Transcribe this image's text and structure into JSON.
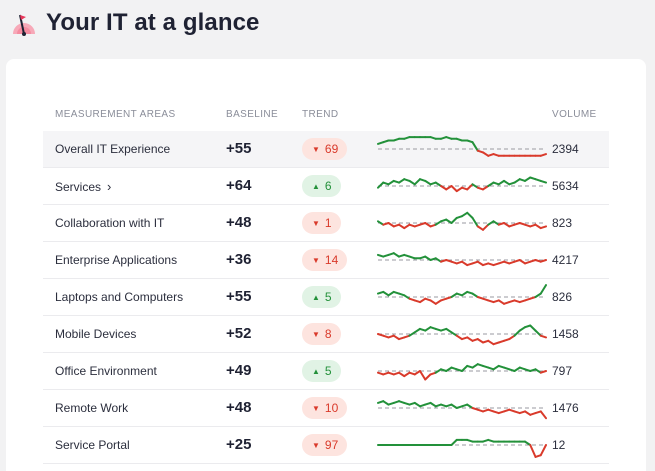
{
  "page": {
    "title": "Your IT at a glance"
  },
  "table": {
    "headers": {
      "area": "MEASUREMENT AREAS",
      "baseline": "BASELINE",
      "trend": "TREND",
      "volume": "VOLUME"
    },
    "rows": [
      {
        "label": "Overall IT Experience",
        "baseline": "+55",
        "trend": "69",
        "direction": "down",
        "volume": "2394",
        "spark": [
          3,
          4,
          5,
          5,
          6,
          6,
          7,
          7,
          7,
          7,
          7,
          6,
          6,
          7,
          6,
          6,
          5,
          5,
          4,
          -1,
          -2,
          -4,
          -3,
          -4,
          -4,
          -4,
          -4,
          -4,
          -4,
          -4,
          -4,
          -4,
          -3
        ]
      },
      {
        "label": "Services",
        "has_chevron": true,
        "baseline": "+64",
        "trend": "6",
        "direction": "up",
        "volume": "5634",
        "spark": [
          -1,
          2,
          1,
          3,
          2,
          4,
          3,
          1,
          4,
          3,
          1,
          2,
          0,
          -2,
          0,
          -3,
          -1,
          -2,
          1,
          -1,
          -2,
          0,
          2,
          1,
          3,
          1,
          2,
          4,
          3,
          5,
          4,
          3,
          2
        ]
      },
      {
        "label": "Collaboration with IT",
        "baseline": "+48",
        "trend": "1",
        "direction": "down",
        "volume": "823",
        "spark": [
          1,
          -1,
          0,
          -2,
          -1,
          -3,
          -1,
          -2,
          -1,
          0,
          -2,
          -1,
          1,
          2,
          0,
          3,
          4,
          6,
          3,
          -2,
          -4,
          -1,
          1,
          -1,
          0,
          -2,
          -1,
          0,
          -1,
          -2,
          -1,
          -3,
          -2
        ]
      },
      {
        "label": "Enterprise Applications",
        "baseline": "+36",
        "trend": "14",
        "direction": "down",
        "volume": "4217",
        "spark": [
          3,
          2,
          3,
          4,
          2,
          3,
          2,
          1,
          1,
          2,
          0,
          1,
          -1,
          0,
          -1,
          -2,
          -1,
          -3,
          -2,
          -1,
          -3,
          -2,
          -3,
          -2,
          -1,
          -2,
          -1,
          0,
          -2,
          -1,
          0,
          -1,
          0
        ]
      },
      {
        "label": "Laptops and Computers",
        "baseline": "+55",
        "trend": "5",
        "direction": "up",
        "volume": "826",
        "spark": [
          2,
          3,
          1,
          3,
          2,
          1,
          -1,
          -2,
          -3,
          -1,
          -2,
          -4,
          -2,
          -1,
          0,
          2,
          1,
          3,
          2,
          0,
          -1,
          -2,
          -3,
          -2,
          -4,
          -3,
          -2,
          -3,
          -2,
          -1,
          0,
          2,
          7
        ]
      },
      {
        "label": "Mobile Devices",
        "baseline": "+52",
        "trend": "8",
        "direction": "down",
        "volume": "1458",
        "spark": [
          0,
          -1,
          -2,
          -1,
          -3,
          -2,
          -1,
          1,
          3,
          2,
          4,
          3,
          2,
          3,
          1,
          -1,
          -3,
          -2,
          -4,
          -3,
          -5,
          -4,
          -6,
          -5,
          -4,
          -3,
          -1,
          2,
          4,
          5,
          2,
          -1,
          -2
        ]
      },
      {
        "label": "Office Environment",
        "baseline": "+49",
        "trend": "5",
        "direction": "up",
        "volume": "797",
        "spark": [
          -1,
          -2,
          -1,
          -2,
          -1,
          -3,
          -1,
          -2,
          0,
          -5,
          -2,
          -1,
          1,
          0,
          2,
          1,
          0,
          3,
          2,
          4,
          3,
          2,
          1,
          3,
          2,
          1,
          0,
          2,
          1,
          0,
          1,
          -1,
          0
        ]
      },
      {
        "label": "Remote Work",
        "baseline": "+48",
        "trend": "10",
        "direction": "down",
        "volume": "1476",
        "spark": [
          3,
          4,
          2,
          3,
          4,
          3,
          2,
          3,
          1,
          2,
          3,
          1,
          2,
          1,
          2,
          0,
          1,
          2,
          0,
          -1,
          -2,
          -1,
          -2,
          -3,
          -2,
          -1,
          -2,
          -3,
          -2,
          -4,
          -3,
          -2,
          -6
        ]
      },
      {
        "label": "Service Portal",
        "baseline": "+25",
        "trend": "97",
        "direction": "down",
        "volume": "12",
        "spark": [
          0,
          0,
          0,
          0,
          0,
          0,
          0,
          0,
          0,
          0,
          0,
          0,
          0,
          0,
          0,
          3,
          3,
          3,
          2,
          2,
          2,
          3,
          2,
          2,
          2,
          2,
          2,
          2,
          2,
          0,
          -7,
          -6,
          0
        ]
      }
    ]
  },
  "colors": {
    "up": "#23913a",
    "down": "#d93a2b",
    "baseline_dash": "#9a9aa2"
  },
  "icons": {
    "logo": "flag-meter-logo-icon",
    "chevron": "chevron-right-icon",
    "up": "triangle-up-icon",
    "down": "triangle-down-icon"
  }
}
